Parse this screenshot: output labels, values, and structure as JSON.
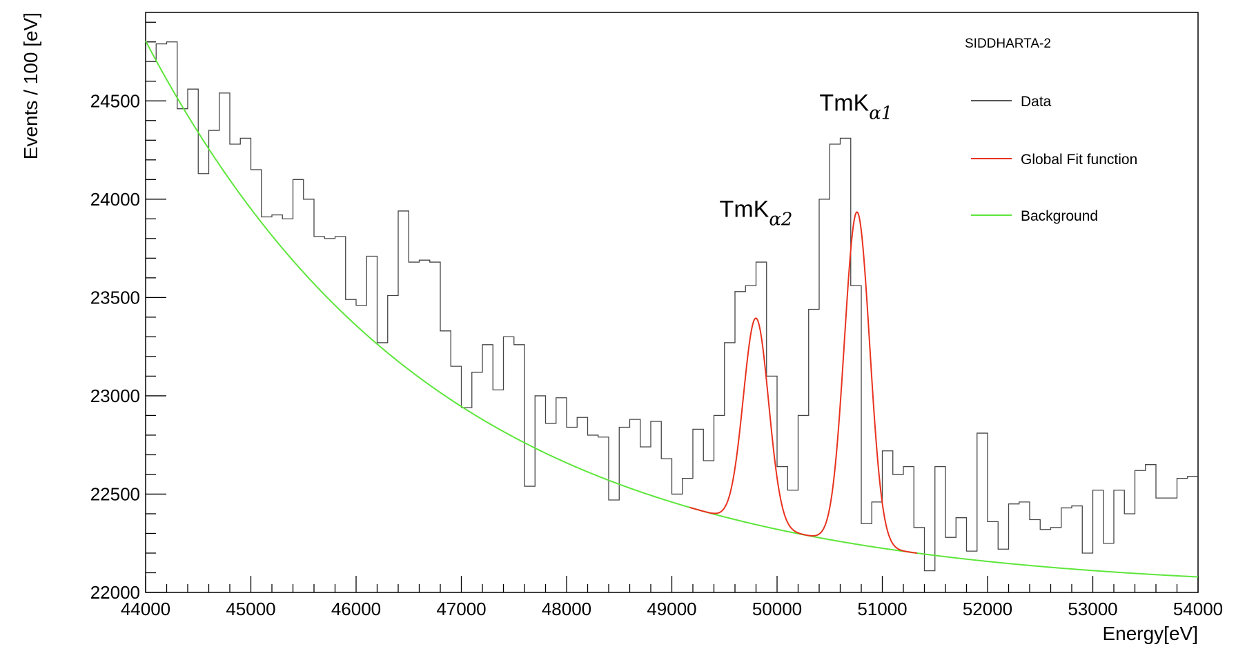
{
  "chart_data": {
    "type": "line",
    "title": "SIDDHARTA-2",
    "xlabel": "Energy[eV]",
    "ylabel": "Events / 100 [eV]",
    "xlim": [
      44000,
      54000
    ],
    "ylim": [
      22000,
      24950
    ],
    "x_ticks": [
      44000,
      45000,
      46000,
      47000,
      48000,
      49000,
      50000,
      51000,
      52000,
      53000,
      54000
    ],
    "y_ticks": [
      22000,
      22500,
      23000,
      23500,
      24000,
      24500
    ],
    "grid": false,
    "legend": {
      "placement": "top-right",
      "entries": [
        {
          "label": "Data",
          "color": "#555555"
        },
        {
          "label": "Global Fit function",
          "color": "#e8321e"
        },
        {
          "label": "Background",
          "color": "#5ce63a"
        }
      ]
    },
    "annotations": [
      {
        "base": "TmK",
        "sub": "α2",
        "x": 49800,
        "y": 23910
      },
      {
        "base": "TmK",
        "sub": "α1",
        "x": 50750,
        "y": 24450
      }
    ],
    "histogram": {
      "name": "Data",
      "bin_width": 100,
      "x_start": 44000,
      "values": [
        24700,
        24790,
        24800,
        24460,
        24560,
        24130,
        24350,
        24540,
        24280,
        24310,
        24150,
        23910,
        23920,
        23900,
        24100,
        24000,
        23810,
        23800,
        23810,
        23490,
        23460,
        23710,
        23270,
        23510,
        23940,
        23680,
        23690,
        23680,
        23330,
        23150,
        22940,
        23120,
        23260,
        23030,
        23300,
        23260,
        22540,
        23000,
        22860,
        22990,
        22840,
        22890,
        22800,
        22790,
        22470,
        22840,
        22880,
        22740,
        22870,
        22680,
        22500,
        22580,
        22830,
        22670,
        22900,
        23270,
        23530,
        23560,
        23680,
        23100,
        22640,
        22520,
        22900,
        23440,
        24000,
        24280,
        24310,
        23560,
        22350,
        22460,
        22720,
        22600,
        22640,
        22330,
        22110,
        22640,
        22280,
        22380,
        22210,
        22810,
        22360,
        22220,
        22450,
        22460,
        22370,
        22320,
        22330,
        22430,
        22440,
        22200,
        22520,
        22250,
        22520,
        22400,
        22620,
        22650,
        22480,
        22480,
        22580,
        22590
      ]
    },
    "background_model": {
      "name": "Background",
      "form": "A*exp(-(x-44000)/tau)+C",
      "A": 2800,
      "tau": 2750,
      "C": 22005
    },
    "peaks": [
      {
        "name": "TmK α2",
        "center": 49800,
        "sigma": 120,
        "amplitude": 1050
      },
      {
        "name": "TmK α1",
        "center": 50760,
        "sigma": 120,
        "amplitude": 1690
      }
    ],
    "fit_range": [
      49170,
      51330
    ]
  }
}
